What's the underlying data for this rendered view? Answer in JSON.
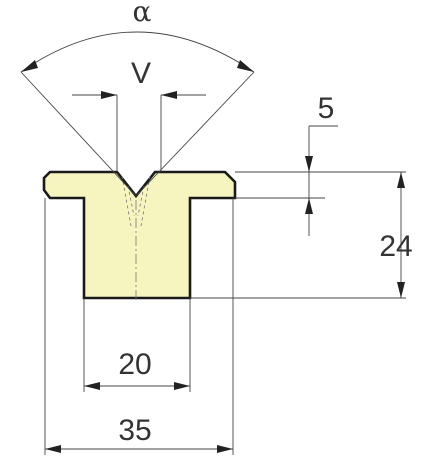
{
  "labels": {
    "angle": "α",
    "v_opening": "V",
    "depth": "5",
    "height": "24",
    "base_width": "20",
    "top_width": "35"
  },
  "colors": {
    "body_fill": "#f6f4bf",
    "outline": "#1a1a1a",
    "dimension_line": "#444444",
    "text": "#333333"
  }
}
